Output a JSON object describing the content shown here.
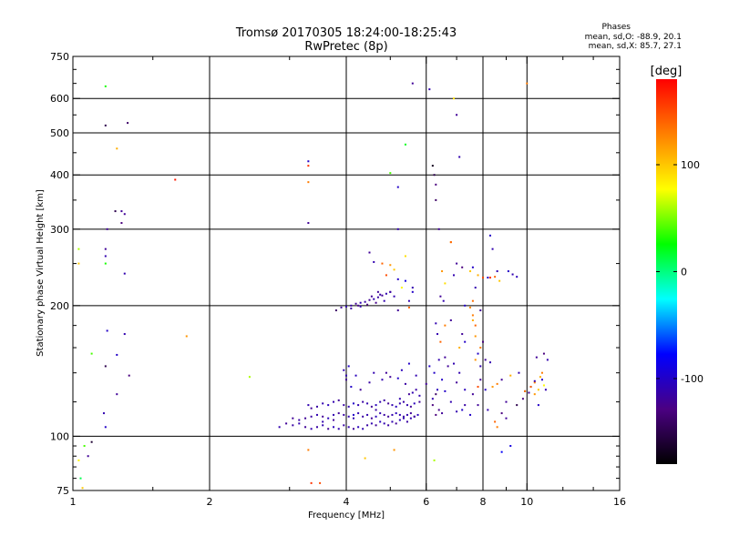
{
  "chart_data": {
    "type": "scatter",
    "title": "Tromsø 20170305 18:24:00-18:25:43",
    "subtitle": "RwPretec (8p)",
    "xlabel": "Frequency [MHz]",
    "ylabel": "Stationary phase Virtual Height [km]",
    "x_scale": "log",
    "y_scale": "log",
    "xlim": [
      1,
      16
    ],
    "ylim": [
      75,
      750
    ],
    "x_ticks": [
      1,
      2,
      4,
      6,
      8,
      10,
      16
    ],
    "x_tick_labels": [
      "1",
      "2",
      "4",
      "6",
      "8",
      "10",
      "16"
    ],
    "y_ticks": [
      75,
      100,
      200,
      300,
      400,
      500,
      600,
      750
    ],
    "y_tick_labels": [
      "75",
      "100",
      "200",
      "300",
      "400",
      "500",
      "600",
      "750"
    ],
    "x_gridlines": [
      2,
      4,
      6,
      8,
      10
    ],
    "y_gridlines": [
      100,
      200,
      300,
      400,
      500,
      600
    ],
    "grid": true,
    "stats": {
      "heading": "Phases",
      "line_o": "mean, sd,O: -88.9, 20.1",
      "line_x": "mean, sd,X:  85.7, 27.1"
    },
    "colorbar": {
      "label": "[deg]",
      "range": [
        -180,
        180
      ],
      "tick_values": [
        100,
        0,
        -100
      ],
      "tick_labels": [
        "100",
        "0",
        "-100"
      ],
      "colormap": [
        "#000000",
        "#4b0082",
        "#0000ff",
        "#00ffff",
        "#00ff00",
        "#ffff00",
        "#ff8000",
        "#ff0000"
      ]
    },
    "points": [
      [
        1.06,
        95,
        40
      ],
      [
        1.03,
        88,
        80
      ],
      [
        1.04,
        80,
        10
      ],
      [
        1.05,
        76,
        100
      ],
      [
        1.08,
        90,
        -120
      ],
      [
        1.1,
        97,
        -160
      ],
      [
        1.03,
        270,
        60
      ],
      [
        1.03,
        250,
        100
      ],
      [
        1.18,
        250,
        30
      ],
      [
        1.18,
        270,
        -120
      ],
      [
        1.18,
        260,
        -110
      ],
      [
        1.19,
        300,
        -120
      ],
      [
        1.24,
        330,
        -150
      ],
      [
        1.28,
        310,
        -130
      ],
      [
        1.3,
        325,
        -120
      ],
      [
        1.28,
        330,
        -120
      ],
      [
        1.3,
        237,
        -110
      ],
      [
        1.18,
        520,
        -150
      ],
      [
        1.32,
        527,
        -140
      ],
      [
        1.18,
        640,
        30
      ],
      [
        1.25,
        460,
        110
      ],
      [
        1.68,
        390,
        170
      ],
      [
        3.3,
        430,
        -100
      ],
      [
        3.3,
        420,
        160
      ],
      [
        3.3,
        385,
        130
      ],
      [
        3.3,
        310,
        -120
      ],
      [
        1.19,
        175,
        -100
      ],
      [
        1.1,
        155,
        40
      ],
      [
        1.25,
        154,
        -100
      ],
      [
        1.3,
        172,
        -110
      ],
      [
        1.18,
        145,
        -150
      ],
      [
        1.33,
        138,
        -130
      ],
      [
        1.25,
        125,
        -120
      ],
      [
        1.17,
        113,
        -110
      ],
      [
        1.18,
        105,
        -100
      ],
      [
        1.78,
        170,
        120
      ],
      [
        2.45,
        137,
        60
      ],
      [
        3.3,
        93,
        130
      ],
      [
        3.35,
        78,
        160
      ],
      [
        3.5,
        78,
        150
      ],
      [
        4.4,
        89,
        100
      ],
      [
        5.1,
        93,
        120
      ],
      [
        5.0,
        404,
        40
      ],
      [
        5.2,
        375,
        -100
      ],
      [
        5.4,
        470,
        20
      ],
      [
        5.6,
        650,
        -120
      ],
      [
        6.1,
        630,
        -110
      ],
      [
        6.2,
        420,
        -170
      ],
      [
        6.25,
        400,
        -150
      ],
      [
        6.3,
        380,
        -130
      ],
      [
        6.3,
        350,
        -140
      ],
      [
        6.4,
        300,
        -120
      ],
      [
        6.8,
        280,
        120
      ],
      [
        6.9,
        600,
        90
      ],
      [
        7.0,
        550,
        -120
      ],
      [
        7.1,
        440,
        -110
      ],
      [
        10.0,
        650,
        130
      ],
      [
        5.2,
        300,
        -110
      ],
      [
        8.3,
        290,
        -100
      ],
      [
        8.6,
        240,
        -110
      ],
      [
        6.25,
        88,
        60
      ],
      [
        8.8,
        92,
        -80
      ],
      [
        9.2,
        95,
        -90
      ],
      [
        4.8,
        250,
        140
      ],
      [
        5.0,
        248,
        120
      ],
      [
        5.1,
        242,
        100
      ],
      [
        4.9,
        235,
        150
      ],
      [
        5.2,
        230,
        -100
      ],
      [
        5.3,
        220,
        80
      ],
      [
        5.0,
        215,
        -120
      ],
      [
        4.6,
        252,
        -110
      ],
      [
        4.5,
        265,
        -120
      ],
      [
        5.1,
        210,
        -110
      ],
      [
        5.4,
        260,
        90
      ],
      [
        5.6,
        215,
        -100
      ],
      [
        5.5,
        205,
        -110
      ],
      [
        5.4,
        228,
        -90
      ],
      [
        7.0,
        250,
        -120
      ],
      [
        7.2,
        245,
        -130
      ],
      [
        6.5,
        240,
        120
      ],
      [
        6.6,
        225,
        90
      ],
      [
        6.9,
        235,
        -110
      ],
      [
        7.5,
        240,
        100
      ],
      [
        7.8,
        235,
        110
      ],
      [
        8.2,
        232,
        -100
      ],
      [
        8.7,
        228,
        100
      ],
      [
        9.1,
        240,
        -100
      ],
      [
        9.3,
        236,
        -110
      ],
      [
        9.5,
        233,
        -105
      ],
      [
        8.4,
        270,
        -110
      ],
      [
        7.6,
        245,
        -100
      ],
      [
        6.8,
        280,
        140
      ],
      [
        6.45,
        210,
        -120
      ],
      [
        6.55,
        205,
        -110
      ],
      [
        7.3,
        200,
        -100
      ],
      [
        7.9,
        195,
        -120
      ],
      [
        7.7,
        220,
        -110
      ],
      [
        8.0,
        232,
        150
      ],
      [
        8.3,
        232,
        160
      ],
      [
        8.5,
        233,
        140
      ],
      [
        9.0,
        120,
        -120
      ],
      [
        9.5,
        118,
        -150
      ],
      [
        9.8,
        122,
        -130
      ],
      [
        10.4,
        125,
        120
      ],
      [
        10.6,
        128,
        100
      ],
      [
        10.9,
        131,
        80
      ],
      [
        11.0,
        128,
        -110
      ],
      [
        10.8,
        135,
        -100
      ],
      [
        10.5,
        152,
        -120
      ],
      [
        10.9,
        155,
        -130
      ],
      [
        11.1,
        150,
        -110
      ],
      [
        10.8,
        140,
        130
      ],
      [
        10.4,
        133,
        130
      ],
      [
        10.7,
        137,
        110
      ],
      [
        10.2,
        130,
        -115
      ],
      [
        9.9,
        127,
        -120
      ],
      [
        10.6,
        118,
        -100
      ],
      [
        8.4,
        130,
        120
      ],
      [
        8.6,
        132,
        130
      ],
      [
        8.8,
        135,
        -120
      ],
      [
        9.2,
        138,
        110
      ],
      [
        9.6,
        140,
        -110
      ],
      [
        9.9,
        127,
        130
      ],
      [
        10.2,
        130,
        140
      ],
      [
        10.4,
        134,
        -110
      ],
      [
        10.1,
        126,
        -120
      ],
      [
        8.2,
        115,
        -110
      ],
      [
        8.8,
        113,
        -130
      ],
      [
        9.0,
        110,
        -120
      ],
      [
        8.5,
        108,
        140
      ],
      [
        8.6,
        105,
        130
      ],
      [
        7.8,
        118,
        -120
      ],
      [
        7.2,
        115,
        -100
      ],
      [
        6.8,
        120,
        -110
      ],
      [
        6.5,
        113,
        -120
      ],
      [
        6.3,
        112,
        -130
      ],
      [
        6.4,
        115,
        -125
      ],
      [
        7.0,
        114,
        -110
      ],
      [
        7.3,
        118,
        -115
      ],
      [
        6.25,
        140,
        -100
      ],
      [
        6.4,
        150,
        -110
      ],
      [
        6.6,
        152,
        -120
      ],
      [
        6.9,
        147,
        -110
      ],
      [
        7.1,
        160,
        110
      ],
      [
        7.3,
        165,
        -100
      ],
      [
        6.45,
        165,
        140
      ],
      [
        6.6,
        180,
        130
      ],
      [
        6.8,
        185,
        -120
      ],
      [
        7.2,
        172,
        -120
      ],
      [
        6.35,
        172,
        -110
      ],
      [
        6.2,
        118,
        -130
      ],
      [
        6.2,
        122,
        -110
      ],
      [
        6.3,
        125,
        -140
      ],
      [
        6.0,
        132,
        -120
      ],
      [
        6.1,
        145,
        -100
      ],
      [
        6.3,
        182,
        -110
      ],
      [
        6.6,
        127,
        -100
      ],
      [
        7.0,
        133,
        -120
      ],
      [
        7.3,
        128,
        -105
      ],
      [
        7.6,
        185,
        110
      ],
      [
        7.7,
        170,
        120
      ],
      [
        7.9,
        160,
        130
      ],
      [
        7.7,
        150,
        120
      ],
      [
        7.8,
        155,
        -100
      ],
      [
        7.9,
        145,
        -110
      ],
      [
        8.1,
        150,
        -120
      ],
      [
        8.3,
        148,
        -110
      ],
      [
        8.0,
        165,
        -130
      ],
      [
        7.9,
        135,
        -120
      ],
      [
        8.1,
        128,
        -100
      ],
      [
        7.6,
        190,
        130
      ],
      [
        7.5,
        198,
        125
      ],
      [
        7.6,
        205,
        135
      ],
      [
        7.7,
        180,
        140
      ],
      [
        7.8,
        130,
        150
      ],
      [
        7.6,
        125,
        -120
      ],
      [
        7.5,
        112,
        -100
      ],
      [
        7.1,
        140,
        -110
      ],
      [
        6.7,
        145,
        -120
      ],
      [
        6.5,
        135,
        -100
      ],
      [
        6.35,
        128,
        -105
      ],
      [
        5.7,
        138,
        -110
      ],
      [
        5.5,
        147,
        -100
      ],
      [
        5.3,
        142,
        -105
      ],
      [
        5.0,
        137,
        -120
      ],
      [
        4.8,
        135,
        -110
      ],
      [
        4.5,
        133,
        -115
      ],
      [
        4.3,
        128,
        -120
      ],
      [
        4.1,
        130,
        -100
      ],
      [
        4.0,
        138,
        -110
      ],
      [
        3.95,
        142,
        -110
      ],
      [
        4.0,
        135,
        -120
      ],
      [
        4.05,
        145,
        -100
      ],
      [
        4.2,
        138,
        -105
      ],
      [
        4.6,
        140,
        -110
      ],
      [
        4.9,
        140,
        -120
      ],
      [
        5.2,
        136,
        -100
      ],
      [
        5.4,
        132,
        -115
      ],
      [
        5.6,
        126,
        -110
      ],
      [
        5.8,
        120,
        -120
      ],
      [
        3.3,
        118,
        -110
      ],
      [
        3.35,
        116,
        -120
      ],
      [
        3.45,
        117,
        -115
      ],
      [
        3.55,
        119,
        -110
      ],
      [
        3.65,
        118,
        -105
      ],
      [
        3.75,
        120,
        -110
      ],
      [
        3.85,
        121,
        -120
      ],
      [
        3.95,
        118,
        -115
      ],
      [
        4.05,
        117,
        -110
      ],
      [
        4.15,
        119,
        -100
      ],
      [
        4.25,
        118,
        -110
      ],
      [
        4.35,
        120,
        -115
      ],
      [
        4.45,
        119,
        -110
      ],
      [
        4.55,
        117,
        -120
      ],
      [
        4.65,
        118,
        -105
      ],
      [
        4.75,
        120,
        -110
      ],
      [
        4.85,
        121,
        -115
      ],
      [
        4.95,
        119,
        -120
      ],
      [
        5.05,
        118,
        -110
      ],
      [
        5.15,
        117,
        -105
      ],
      [
        5.25,
        119,
        -110
      ],
      [
        5.35,
        120,
        -115
      ],
      [
        5.45,
        118,
        -110
      ],
      [
        5.55,
        117,
        -120
      ],
      [
        5.65,
        119,
        -105
      ],
      [
        3.25,
        110,
        -120
      ],
      [
        3.35,
        111,
        -115
      ],
      [
        3.45,
        112,
        -110
      ],
      [
        3.55,
        111,
        -120
      ],
      [
        3.65,
        110,
        -105
      ],
      [
        3.75,
        112,
        -110
      ],
      [
        3.85,
        113,
        -120
      ],
      [
        3.95,
        112,
        -115
      ],
      [
        4.05,
        111,
        -110
      ],
      [
        4.15,
        112,
        -100
      ],
      [
        4.25,
        113,
        -110
      ],
      [
        4.35,
        111,
        -115
      ],
      [
        4.45,
        112,
        -110
      ],
      [
        4.55,
        110,
        -120
      ],
      [
        4.65,
        111,
        -105
      ],
      [
        4.75,
        113,
        -110
      ],
      [
        4.85,
        112,
        -115
      ],
      [
        4.95,
        111,
        -120
      ],
      [
        5.05,
        112,
        -110
      ],
      [
        5.15,
        113,
        -105
      ],
      [
        5.25,
        112,
        -110
      ],
      [
        5.35,
        111,
        -115
      ],
      [
        5.45,
        112,
        -110
      ],
      [
        5.55,
        113,
        -120
      ],
      [
        5.65,
        111,
        -105
      ],
      [
        2.85,
        105,
        -110
      ],
      [
        2.95,
        107,
        -120
      ],
      [
        3.05,
        106,
        -115
      ],
      [
        3.15,
        107,
        -110
      ],
      [
        3.25,
        105,
        -120
      ],
      [
        3.35,
        104,
        -110
      ],
      [
        3.45,
        105,
        -115
      ],
      [
        3.55,
        106,
        -110
      ],
      [
        3.65,
        104,
        -120
      ],
      [
        3.75,
        105,
        -105
      ],
      [
        3.85,
        104,
        -110
      ],
      [
        3.95,
        106,
        -115
      ],
      [
        4.05,
        105,
        -110
      ],
      [
        4.15,
        104,
        -120
      ],
      [
        4.25,
        105,
        -105
      ],
      [
        4.35,
        104,
        -110
      ],
      [
        4.45,
        106,
        -115
      ],
      [
        4.55,
        107,
        -110
      ],
      [
        4.65,
        106,
        -120
      ],
      [
        4.75,
        108,
        -105
      ],
      [
        4.85,
        107,
        -110
      ],
      [
        4.95,
        106,
        -115
      ],
      [
        5.05,
        108,
        -110
      ],
      [
        5.15,
        107,
        -120
      ],
      [
        5.25,
        109,
        -105
      ],
      [
        5.35,
        110,
        -110
      ],
      [
        5.45,
        108,
        -115
      ],
      [
        5.55,
        110,
        -110
      ],
      [
        5.65,
        111,
        -120
      ],
      [
        5.75,
        112,
        -105
      ],
      [
        3.05,
        110,
        -120
      ],
      [
        3.15,
        109,
        -115
      ],
      [
        3.55,
        108,
        -110
      ],
      [
        3.75,
        109,
        -120
      ],
      [
        4.15,
        110,
        -110
      ],
      [
        4.65,
        115,
        -115
      ],
      [
        5.25,
        122,
        -110
      ],
      [
        5.5,
        125,
        -120
      ],
      [
        5.7,
        128,
        -115
      ],
      [
        5.8,
        124,
        -110
      ],
      [
        3.9,
        198,
        -120
      ],
      [
        4.0,
        199,
        -110
      ],
      [
        4.1,
        200,
        -115
      ],
      [
        4.2,
        202,
        -120
      ],
      [
        4.3,
        203,
        -110
      ],
      [
        4.4,
        204,
        -115
      ],
      [
        4.5,
        206,
        -120
      ],
      [
        4.6,
        207,
        -110
      ],
      [
        4.7,
        209,
        -115
      ],
      [
        4.8,
        211,
        -120
      ],
      [
        4.9,
        213,
        -110
      ],
      [
        5.0,
        215,
        -115
      ],
      [
        3.8,
        195,
        -140
      ],
      [
        4.25,
        200,
        -125
      ],
      [
        4.45,
        201,
        -130
      ],
      [
        4.65,
        203,
        -125
      ],
      [
        4.85,
        205,
        -110
      ],
      [
        4.55,
        210,
        -120
      ],
      [
        4.75,
        212,
        -115
      ],
      [
        5.2,
        195,
        -120
      ],
      [
        4.1,
        197,
        -115
      ],
      [
        4.3,
        199,
        -110
      ],
      [
        4.7,
        215,
        -120
      ],
      [
        5.6,
        220,
        -110
      ],
      [
        5.5,
        198,
        140
      ]
    ]
  }
}
